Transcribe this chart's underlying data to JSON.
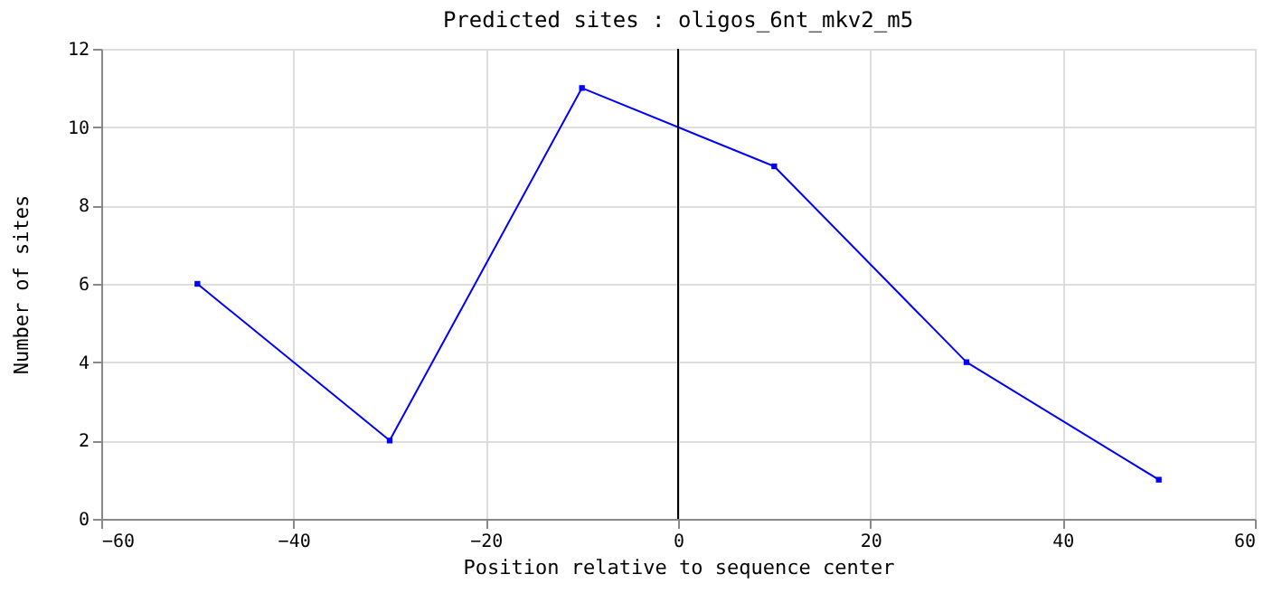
{
  "chart_data": {
    "type": "line",
    "title": "Predicted sites : oligos_6nt_mkv2_m5",
    "xlabel": "Position relative to sequence center",
    "ylabel": "Number of sites",
    "x": [
      -50,
      -30,
      -10,
      10,
      30,
      50
    ],
    "series": [
      {
        "color": "#0000ff",
        "values": [
          6,
          2,
          11,
          9,
          4,
          1
        ]
      }
    ],
    "xlim": [
      -60,
      60
    ],
    "xticks": [
      -60,
      -40,
      -20,
      0,
      20,
      40,
      60
    ],
    "ylim": [
      0,
      12
    ],
    "yticks": [
      0,
      2,
      4,
      6,
      8,
      10,
      12
    ],
    "ref_lines": [
      {
        "axis": "x",
        "value": 0,
        "color": "#000000"
      }
    ],
    "grid": true,
    "marker": "square",
    "line_style": "solid"
  }
}
